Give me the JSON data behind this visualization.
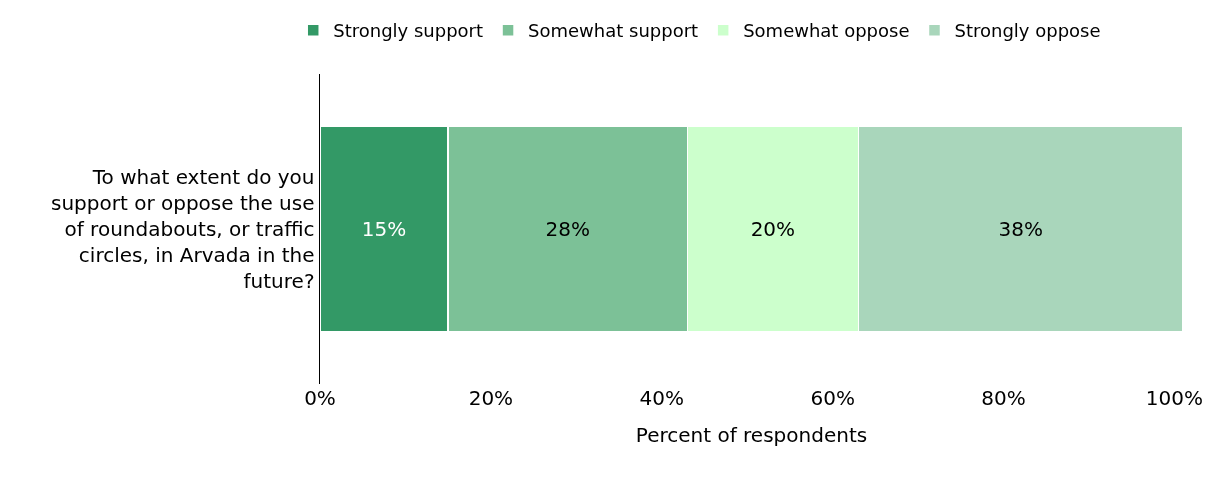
{
  "chart_data": {
    "type": "bar",
    "orientation": "horizontal",
    "stacked": true,
    "xlabel": "Percent of respondents",
    "categories": [
      "To what extent do you support or oppose the use of roundabouts, or traffic circles, in Arvada in the future?"
    ],
    "series": [
      {
        "name": "Strongly support",
        "color": "#339966",
        "values": [
          15
        ],
        "value_labels": [
          "15%"
        ]
      },
      {
        "name": "Somewhat support",
        "color": "#7cc197",
        "values": [
          28
        ],
        "value_labels": [
          "28%"
        ]
      },
      {
        "name": "Somewhat oppose",
        "color": "#ccffcc",
        "values": [
          20
        ],
        "value_labels": [
          "20%"
        ]
      },
      {
        "name": "Strongly oppose",
        "color": "#a9d6bb",
        "values": [
          38
        ],
        "value_labels": [
          "38%"
        ]
      }
    ],
    "xlim": [
      0,
      101
    ],
    "xticks": [
      {
        "value": 0,
        "label": "0%"
      },
      {
        "value": 20,
        "label": "20%"
      },
      {
        "value": 40,
        "label": "40%"
      },
      {
        "value": 60,
        "label": "60%"
      },
      {
        "value": 80,
        "label": "80%"
      },
      {
        "value": 100,
        "label": "100%"
      }
    ],
    "grid": false,
    "legend": "top"
  }
}
